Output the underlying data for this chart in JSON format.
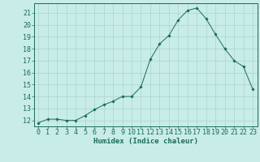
{
  "x": [
    0,
    1,
    2,
    3,
    4,
    5,
    6,
    7,
    8,
    9,
    10,
    11,
    12,
    13,
    14,
    15,
    16,
    17,
    18,
    19,
    20,
    21,
    22,
    23
  ],
  "y": [
    11.8,
    12.1,
    12.1,
    12.0,
    12.0,
    12.4,
    12.9,
    13.3,
    13.6,
    14.0,
    14.0,
    14.8,
    17.1,
    18.4,
    19.1,
    20.4,
    21.2,
    21.4,
    20.5,
    19.2,
    18.0,
    17.0,
    16.5,
    14.6
  ],
  "line_color": "#1a6b5a",
  "marker": "D",
  "marker_size": 1.8,
  "bg_color": "#c8ece8",
  "grid_color": "#aad4ce",
  "axis_color": "#1a6b5a",
  "xlabel": "Humidex (Indice chaleur)",
  "xlabel_fontsize": 6.5,
  "tick_fontsize": 6,
  "ylim": [
    11.5,
    21.8
  ],
  "xlim": [
    -0.5,
    23.5
  ],
  "yticks": [
    12,
    13,
    14,
    15,
    16,
    17,
    18,
    19,
    20,
    21
  ],
  "xticks": [
    0,
    1,
    2,
    3,
    4,
    5,
    6,
    7,
    8,
    9,
    10,
    11,
    12,
    13,
    14,
    15,
    16,
    17,
    18,
    19,
    20,
    21,
    22,
    23
  ]
}
